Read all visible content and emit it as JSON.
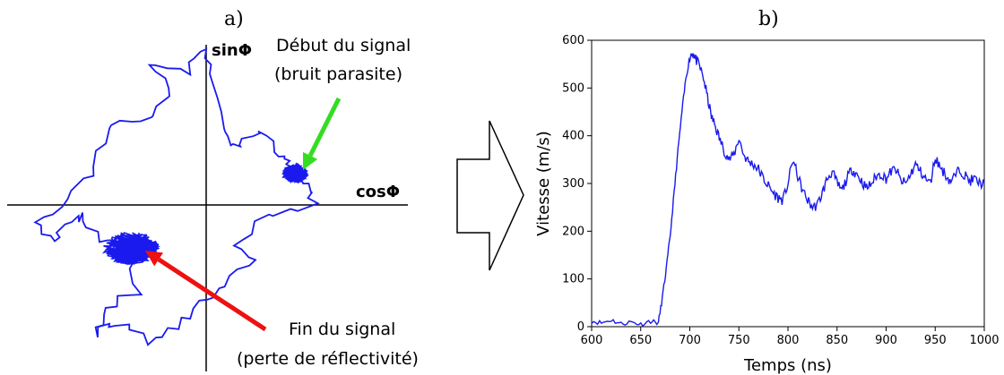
{
  "chart_data": [
    {
      "type": "scatter",
      "panel_label": "a)",
      "x_axis_name": "cosΦ",
      "y_axis_name": "sinΦ",
      "annotations": [
        {
          "line1": "Début du signal",
          "line2": "(bruit parasite)",
          "arrow_color": "#33dd22"
        },
        {
          "line1": "Fin du signal",
          "line2": "(perte de réflectivité)",
          "arrow_color": "#ee1111"
        }
      ],
      "clusters": [
        {
          "name": "debut",
          "center": [
            0.45,
            0.16
          ],
          "spread": 0.07
        },
        {
          "name": "fin",
          "center": [
            -0.38,
            -0.22
          ],
          "spread": 0.1
        }
      ],
      "trajectory_path": [
        [
          -0.38,
          -0.22
        ],
        [
          -0.55,
          -0.18
        ],
        [
          -0.62,
          -0.05
        ],
        [
          -0.72,
          -0.1
        ],
        [
          -0.78,
          -0.2
        ],
        [
          -0.85,
          -0.1
        ],
        [
          -0.7,
          0.05
        ],
        [
          -0.55,
          0.2
        ],
        [
          -0.5,
          0.42
        ],
        [
          -0.3,
          0.45
        ],
        [
          -0.18,
          0.55
        ],
        [
          -0.28,
          0.72
        ],
        [
          -0.1,
          0.68
        ],
        [
          0.0,
          0.8
        ],
        [
          0.05,
          0.6
        ],
        [
          0.1,
          0.35
        ],
        [
          0.15,
          0.3
        ],
        [
          0.25,
          0.38
        ],
        [
          0.35,
          0.28
        ],
        [
          0.42,
          0.2
        ],
        [
          0.45,
          0.16
        ],
        [
          0.5,
          0.1
        ],
        [
          0.55,
          0.0
        ],
        [
          0.3,
          -0.05
        ],
        [
          0.15,
          -0.2
        ],
        [
          0.25,
          -0.3
        ],
        [
          0.1,
          -0.4
        ],
        [
          -0.05,
          -0.5
        ],
        [
          -0.15,
          -0.62
        ],
        [
          -0.3,
          -0.7
        ],
        [
          -0.45,
          -0.6
        ],
        [
          -0.55,
          -0.65
        ],
        [
          -0.5,
          -0.52
        ],
        [
          -0.35,
          -0.45
        ],
        [
          -0.38,
          -0.22
        ]
      ],
      "line_color": "#1a1aee"
    },
    {
      "type": "line",
      "panel_label": "b)",
      "xlabel": "Temps (ns)",
      "ylabel": "Vitesse (m/s)",
      "xlim": [
        600,
        1000
      ],
      "ylim": [
        0,
        600
      ],
      "xticks": [
        600,
        650,
        700,
        750,
        800,
        850,
        900,
        950,
        1000
      ],
      "yticks": [
        0,
        100,
        200,
        300,
        400,
        500,
        600
      ],
      "line_color": "#1a1aee",
      "series": [
        {
          "x": [
            600,
            610,
            620,
            630,
            640,
            650,
            660,
            668,
            672,
            676,
            680,
            684,
            688,
            692,
            696,
            700,
            703,
            706,
            710,
            714,
            718,
            722,
            726,
            730,
            735,
            740,
            745,
            750,
            755,
            760,
            765,
            770,
            775,
            780,
            785,
            790,
            795,
            800,
            805,
            810,
            815,
            820,
            825,
            830,
            835,
            840,
            845,
            850,
            855,
            860,
            865,
            870,
            875,
            880,
            885,
            890,
            895,
            900,
            905,
            910,
            915,
            920,
            925,
            930,
            935,
            940,
            945,
            950,
            955,
            960,
            965,
            970,
            975,
            980,
            985,
            990,
            995,
            1000
          ],
          "y": [
            12,
            8,
            14,
            6,
            10,
            5,
            12,
            8,
            60,
            120,
            190,
            280,
            370,
            450,
            520,
            565,
            575,
            560,
            545,
            520,
            480,
            440,
            420,
            395,
            370,
            350,
            360,
            395,
            360,
            345,
            340,
            330,
            310,
            295,
            280,
            270,
            265,
            300,
            350,
            315,
            285,
            265,
            250,
            255,
            280,
            310,
            325,
            300,
            285,
            310,
            330,
            320,
            305,
            290,
            300,
            315,
            320,
            310,
            325,
            330,
            305,
            300,
            320,
            340,
            325,
            310,
            300,
            355,
            335,
            320,
            305,
            315,
            330,
            318,
            305,
            310,
            300,
            300
          ]
        }
      ]
    }
  ],
  "arrow_between_panels": {
    "direction": "right",
    "fill": "#ffffff",
    "stroke": "#000000"
  }
}
